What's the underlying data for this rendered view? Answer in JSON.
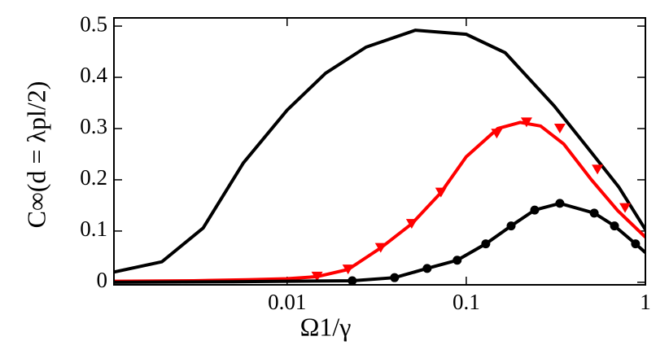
{
  "chart_data": {
    "type": "line",
    "xlabel": "Ω1/γ",
    "ylabel": "C∞(d = λpl/2)",
    "xscale": "log",
    "xlim": [
      0.00108,
      1
    ],
    "ylim": [
      -0.005,
      0.516
    ],
    "xticks": [
      0.01,
      0.1,
      1
    ],
    "yticks": [
      0,
      0.1,
      0.2,
      0.3,
      0.4,
      0.5
    ],
    "series": [
      {
        "color": "#000000",
        "marker": "none",
        "x": [
          0.00108,
          0.002,
          0.0034,
          0.0057,
          0.01,
          0.0164,
          0.0276,
          0.052,
          0.1,
          0.165,
          0.31,
          0.47,
          0.71,
          1
        ],
        "values": [
          0.02,
          0.04,
          0.106,
          0.233,
          0.336,
          0.408,
          0.459,
          0.492,
          0.484,
          0.448,
          0.344,
          0.265,
          0.186,
          0.103
        ]
      },
      {
        "color": "#ff0000",
        "marker": "none",
        "x": [
          0.00108,
          0.003,
          0.006,
          0.01,
          0.0147,
          0.0219,
          0.0333,
          0.0496,
          0.0722,
          0.1,
          0.15,
          0.2,
          0.26,
          0.35,
          0.5,
          0.7,
          1
        ],
        "values": [
          0.002,
          0.003,
          0.005,
          0.007,
          0.011,
          0.025,
          0.067,
          0.114,
          0.175,
          0.245,
          0.3,
          0.312,
          0.305,
          0.27,
          0.2,
          0.14,
          0.088
        ]
      },
      {
        "color": "#ff0000",
        "marker": "triangle",
        "x": [
          0.0147,
          0.0219,
          0.0333,
          0.0496,
          0.0722,
          0.148,
          0.217,
          0.333,
          0.54,
          0.77
        ],
        "values": [
          0.011,
          0.025,
          0.067,
          0.114,
          0.175,
          0.29,
          0.312,
          0.3,
          0.22,
          0.145
        ]
      },
      {
        "color": "#000000",
        "marker": "none",
        "x": [
          0.00108,
          0.005,
          0.01,
          0.0231,
          0.0398,
          0.0605,
          0.089,
          0.1285,
          0.178,
          0.241,
          0.333,
          0.518,
          0.672,
          0.881,
          1
        ],
        "values": [
          0,
          0.001,
          0.002,
          0.003,
          0.009,
          0.027,
          0.043,
          0.075,
          0.11,
          0.141,
          0.154,
          0.135,
          0.11,
          0.075,
          0.058
        ]
      },
      {
        "color": "#000000",
        "marker": "circle",
        "x": [
          0.0231,
          0.0398,
          0.0605,
          0.089,
          0.1285,
          0.178,
          0.241,
          0.333,
          0.518,
          0.672,
          0.881
        ],
        "values": [
          0.003,
          0.009,
          0.027,
          0.043,
          0.075,
          0.11,
          0.141,
          0.154,
          0.135,
          0.11,
          0.075
        ]
      }
    ]
  }
}
